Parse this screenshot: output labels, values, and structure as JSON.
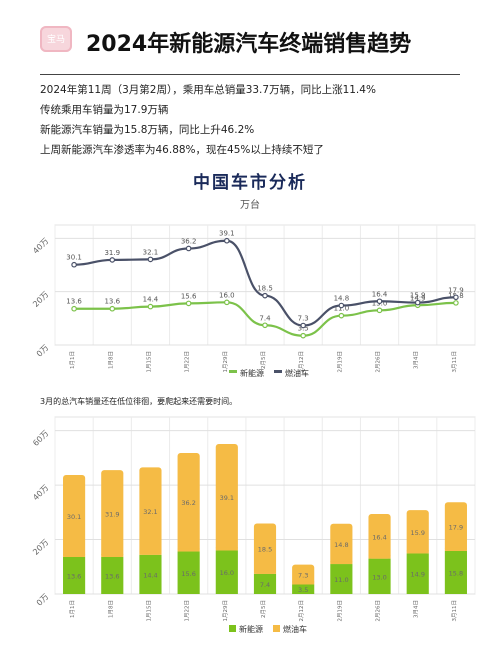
{
  "header": {
    "logo_text": "宝马",
    "title": "2024年新能源汽车终端销售趋势"
  },
  "summary": [
    "2024年第11周（3月第2周），乘用车总销量33.7万辆，同比上涨11.4%",
    "传统乘用车销量为17.9万辆",
    "新能源汽车销量为15.8万辆，同比上升46.2%",
    "上周新能源汽车渗透率为46.88%，现在45%以上持续不短了"
  ],
  "chart1": {
    "title": "中国车市分析",
    "subtitle": "万台"
  },
  "note": "3月的总汽车销量还在低位徘徊，要爬起来还需要时间。",
  "colors": {
    "ev_line": "#7cc24a",
    "ice_line": "#4a5168",
    "ev_bar": "#7cc21c",
    "ice_bar": "#f5bb45"
  },
  "chart_data": [
    {
      "type": "line",
      "title": "中国车市分析",
      "subtitle": "万台",
      "categories": [
        "1月1日",
        "1月8日",
        "1月15日",
        "1月22日",
        "1月29日",
        "2月5日",
        "2月12日",
        "2月19日",
        "2月26日",
        "3月4日",
        "3月11日"
      ],
      "series": [
        {
          "name": "新能源",
          "values": [
            13.6,
            13.6,
            14.4,
            15.6,
            16.0,
            7.4,
            3.5,
            11.0,
            13.0,
            14.9,
            15.8
          ]
        },
        {
          "name": "燃油车",
          "values": [
            30.1,
            31.9,
            32.1,
            36.2,
            39.1,
            18.5,
            7.3,
            14.8,
            16.4,
            15.9,
            17.9
          ]
        }
      ],
      "data_labels": {
        "新能源": [
          "13.6",
          "13.6",
          "14.4",
          "15.6",
          "16.0",
          "7.4",
          "3.5",
          "11.0",
          "13.0",
          "14.9",
          "15.8"
        ],
        "燃油车": [
          "30.1",
          "31.9",
          "32.1",
          "36.2",
          "39.1",
          "18.5",
          "7.3",
          "14.8",
          "16.4",
          "15.9",
          "17.9"
        ]
      },
      "yticks": [
        "0万",
        "20万",
        "40万"
      ],
      "ylim": [
        0,
        45
      ],
      "grid": true,
      "legend": "bottom"
    },
    {
      "type": "bar",
      "stacked": true,
      "categories": [
        "1月1日",
        "1月8日",
        "1月15日",
        "1月22日",
        "1月29日",
        "2月5日",
        "2月12日",
        "2月19日",
        "2月26日",
        "3月4日",
        "3月11日"
      ],
      "series": [
        {
          "name": "新能源",
          "values": [
            13.6,
            13.6,
            14.4,
            15.6,
            16.0,
            7.4,
            3.5,
            11.0,
            13.0,
            14.9,
            15.8
          ]
        },
        {
          "name": "燃油车",
          "values": [
            30.1,
            31.9,
            32.1,
            36.2,
            39.1,
            18.5,
            7.3,
            14.8,
            16.4,
            15.9,
            17.9
          ]
        }
      ],
      "yticks": [
        "0万",
        "20万",
        "40万",
        "60万"
      ],
      "ylim": [
        0,
        65
      ],
      "grid": true,
      "legend": "bottom"
    }
  ]
}
